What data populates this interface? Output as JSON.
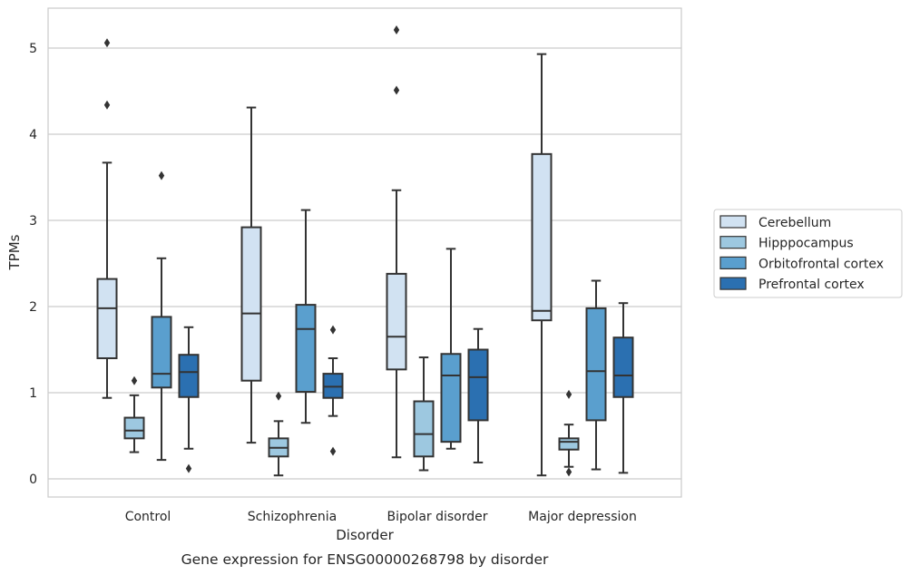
{
  "chart_data": {
    "type": "boxplot",
    "title": "",
    "caption": "Gene expression for ENSG00000268798 by disorder",
    "xlabel": "Disorder",
    "ylabel": "TPMs",
    "ylim": [
      -0.2,
      5.47
    ],
    "yticks": [
      0,
      1,
      2,
      3,
      4,
      5
    ],
    "grid": true,
    "legend_position": "right",
    "categories": [
      "Control",
      "Schizophrenia",
      "Bipolar disorder",
      "Major depression"
    ],
    "series": [
      {
        "name": "Cerebellum",
        "color": "#d1e2f2",
        "boxes": [
          {
            "whislo": 0.94,
            "q1": 1.4,
            "med": 1.98,
            "q3": 2.32,
            "whishi": 3.67,
            "fliers": [
              4.34,
              5.06
            ]
          },
          {
            "whislo": 0.42,
            "q1": 1.14,
            "med": 1.92,
            "q3": 2.92,
            "whishi": 4.31,
            "fliers": []
          },
          {
            "whislo": 0.25,
            "q1": 1.27,
            "med": 1.65,
            "q3": 2.38,
            "whishi": 3.35,
            "fliers": [
              4.51,
              5.21
            ]
          },
          {
            "whislo": 0.04,
            "q1": 1.84,
            "med": 1.95,
            "q3": 3.77,
            "whishi": 4.93,
            "fliers": []
          }
        ]
      },
      {
        "name": "Hipppocampus",
        "color": "#9dc8e0",
        "boxes": [
          {
            "whislo": 0.31,
            "q1": 0.47,
            "med": 0.56,
            "q3": 0.71,
            "whishi": 0.97,
            "fliers": [
              1.14
            ]
          },
          {
            "whislo": 0.04,
            "q1": 0.26,
            "med": 0.36,
            "q3": 0.47,
            "whishi": 0.67,
            "fliers": [
              0.96
            ]
          },
          {
            "whislo": 0.1,
            "q1": 0.26,
            "med": 0.52,
            "q3": 0.9,
            "whishi": 1.41,
            "fliers": []
          },
          {
            "whislo": 0.14,
            "q1": 0.34,
            "med": 0.43,
            "q3": 0.47,
            "whishi": 0.63,
            "fliers": [
              0.08,
              0.98
            ]
          }
        ]
      },
      {
        "name": "Orbitofrontal cortex",
        "color": "#5a9fce",
        "boxes": [
          {
            "whislo": 0.22,
            "q1": 1.06,
            "med": 1.22,
            "q3": 1.88,
            "whishi": 2.56,
            "fliers": [
              3.52
            ]
          },
          {
            "whislo": 0.65,
            "q1": 1.01,
            "med": 1.74,
            "q3": 2.02,
            "whishi": 3.12,
            "fliers": []
          },
          {
            "whislo": 0.35,
            "q1": 0.43,
            "med": 1.2,
            "q3": 1.45,
            "whishi": 2.67,
            "fliers": []
          },
          {
            "whislo": 0.11,
            "q1": 0.68,
            "med": 1.25,
            "q3": 1.98,
            "whishi": 2.3,
            "fliers": []
          }
        ]
      },
      {
        "name": "Prefrontal cortex",
        "color": "#2b70b1",
        "boxes": [
          {
            "whislo": 0.35,
            "q1": 0.95,
            "med": 1.24,
            "q3": 1.44,
            "whishi": 1.76,
            "fliers": [
              0.12
            ]
          },
          {
            "whislo": 0.73,
            "q1": 0.94,
            "med": 1.07,
            "q3": 1.22,
            "whishi": 1.4,
            "fliers": [
              0.32,
              1.73
            ]
          },
          {
            "whislo": 0.19,
            "q1": 0.68,
            "med": 1.18,
            "q3": 1.5,
            "whishi": 1.74,
            "fliers": []
          },
          {
            "whislo": 0.07,
            "q1": 0.95,
            "med": 1.2,
            "q3": 1.64,
            "whishi": 2.04,
            "fliers": []
          }
        ]
      }
    ]
  }
}
